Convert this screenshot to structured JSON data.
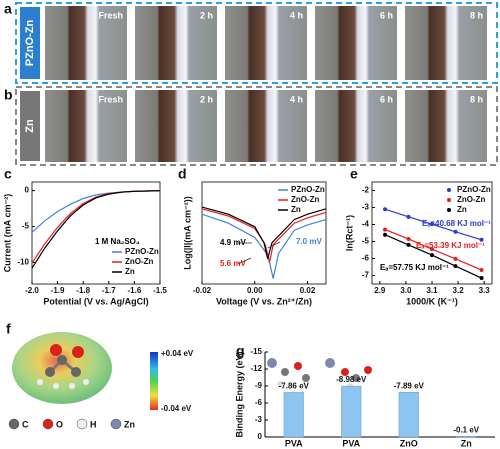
{
  "panel_letters": [
    "a",
    "b",
    "c",
    "d",
    "e",
    "f",
    "g"
  ],
  "photos": {
    "rows": [
      {
        "label": "PZnO-Zn",
        "times": [
          "Fresh",
          "2 h",
          "4 h",
          "6 h",
          "8 h"
        ]
      },
      {
        "label": "Zn",
        "times": [
          "Fresh",
          "2 h",
          "4 h",
          "6 h",
          "8 h"
        ]
      }
    ]
  },
  "esp": {
    "max_label": "+0.04 eV",
    "min_label": "-0.04 eV",
    "atoms": [
      "C",
      "O",
      "H",
      "Zn"
    ]
  },
  "chart_data": [
    {
      "type": "line",
      "xlabel": "Potential (V vs. Ag/AgCl)",
      "ylabel": "Current (mA cm⁻²)",
      "x": [
        -2.0,
        -1.95,
        -1.9,
        -1.85,
        -1.8,
        -1.75,
        -1.7,
        -1.65,
        -1.6,
        -1.55,
        -1.5
      ],
      "series": [
        {
          "name": "PZnO-Zn",
          "color": "#3d85d8",
          "values": [
            -5.8,
            -4.2,
            -2.9,
            -1.9,
            -1.1,
            -0.6,
            -0.35,
            -0.2,
            -0.1,
            -0.05,
            0
          ]
        },
        {
          "name": "ZnO-Zn",
          "color": "#e02020",
          "values": [
            -10.1,
            -7.4,
            -5.1,
            -3.2,
            -1.8,
            -0.9,
            -0.4,
            -0.2,
            -0.1,
            -0.05,
            0
          ]
        },
        {
          "name": "Zn",
          "color": "#000000",
          "values": [
            -10.8,
            -8.0,
            -5.6,
            -3.5,
            -2.0,
            -1.0,
            -0.5,
            -0.2,
            -0.1,
            -0.05,
            0
          ]
        }
      ],
      "xlim": [
        -2.0,
        -1.5
      ],
      "xticks": [
        {
          "value": -2.0,
          "label": "-2.0"
        },
        -1.9,
        -1.8,
        -1.7,
        -1.6,
        -1.5
      ],
      "ylim": [
        -13,
        1.2
      ],
      "yticks": [
        0,
        -5,
        -10
      ],
      "legend": "lower right",
      "annotations": [
        {
          "text": "1 M Na₂SO₄",
          "color": "#000000"
        }
      ]
    },
    {
      "type": "line",
      "xlabel": "Voltage (V vs. Zn²⁺/Zn)",
      "ylabel": "Log(|I|(mA cm⁻²))",
      "series": [
        {
          "name": "PZnO-Zn",
          "color": "#3d85d8",
          "x": [
            -0.02,
            -0.01,
            0,
            0.005,
            0.007,
            0.009,
            0.015,
            0.02,
            0.027
          ],
          "values": [
            -0.3,
            -0.8,
            -1.6,
            -2.6,
            -3.9,
            -2.5,
            -1.2,
            -0.9,
            -0.6
          ]
        },
        {
          "name": "ZnO-Zn",
          "color": "#e02020",
          "x": [
            -0.02,
            -0.01,
            0,
            0.004,
            0.0056,
            0.007,
            0.015,
            0.02,
            0.027
          ],
          "values": [
            0,
            -0.4,
            -1.1,
            -2.0,
            -3.0,
            -2.0,
            -0.8,
            -0.5,
            -0.2
          ]
        },
        {
          "name": "Zn",
          "color": "#000000",
          "x": [
            -0.02,
            -0.01,
            0,
            0.0035,
            0.0049,
            0.0065,
            0.015,
            0.02,
            0.027
          ],
          "values": [
            0.1,
            -0.3,
            -1.0,
            -1.9,
            -2.8,
            -1.9,
            -0.6,
            -0.3,
            0
          ]
        }
      ],
      "xlim": [
        -0.02,
        0.027
      ],
      "xticks": [
        -0.02,
        {
          "value": 0,
          "label": "0.00"
        },
        0.02
      ],
      "ylim": [
        -4.2,
        1.5
      ],
      "legend": "upper right",
      "annotations": [
        {
          "text": "4.9 mV",
          "color": "#000000"
        },
        {
          "text": "5.6 mV",
          "color": "#e02020"
        },
        {
          "text": "7.0 mV",
          "color": "#3d85d8"
        }
      ]
    },
    {
      "type": "scatter",
      "xlabel": "1000/K (K⁻¹)",
      "ylabel": "ln(Rct⁻¹)",
      "fit": true,
      "x": [
        2.92,
        3.01,
        3.1,
        3.19,
        3.29
      ],
      "series": [
        {
          "name": "PZnO-Zn",
          "color": "#2a3bd0",
          "values": [
            -3.1,
            -3.55,
            -3.98,
            -4.43,
            -4.9
          ]
        },
        {
          "name": "ZnO-Zn",
          "color": "#e02020",
          "values": [
            -4.3,
            -4.85,
            -5.45,
            -6.02,
            -6.68
          ]
        },
        {
          "name": "Zn",
          "color": "#000000",
          "values": [
            -4.6,
            -5.2,
            -5.8,
            -6.45,
            -7.15
          ]
        }
      ],
      "xlim": [
        2.87,
        3.33
      ],
      "xticks": [
        2.9,
        {
          "value": 3.0,
          "label": "3.0"
        },
        3.1,
        3.2,
        3.3
      ],
      "ylim": [
        -7.5,
        -1.5
      ],
      "yticks": [
        -2,
        -3,
        -4,
        -5,
        -6,
        -7
      ],
      "legend": "upper right",
      "annotations": [
        {
          "text": "Eₐ=40.68 KJ mol⁻¹",
          "color": "#2a3bd0"
        },
        {
          "text": "Eₐ=53.39 KJ mol⁻¹",
          "color": "#e02020"
        },
        {
          "text": "Eₐ=57.75 KJ mol⁻¹",
          "color": "#000000"
        }
      ]
    },
    {
      "type": "bar",
      "ylabel": "Binding Energy (eV)",
      "color": "#8ec4f0",
      "categories": [
        "PVA",
        "PVA",
        "ZnO",
        "Zn"
      ],
      "values": [
        -7.86,
        -8.98,
        -7.89,
        -0.1
      ],
      "value_labels": [
        "-7.86 eV",
        "-8.98 eV",
        "-7.89 eV",
        "-0.1 eV"
      ],
      "ylim": [
        0,
        -15
      ],
      "yticks": [
        0,
        -3,
        -6,
        -9,
        -12,
        -15
      ]
    }
  ]
}
